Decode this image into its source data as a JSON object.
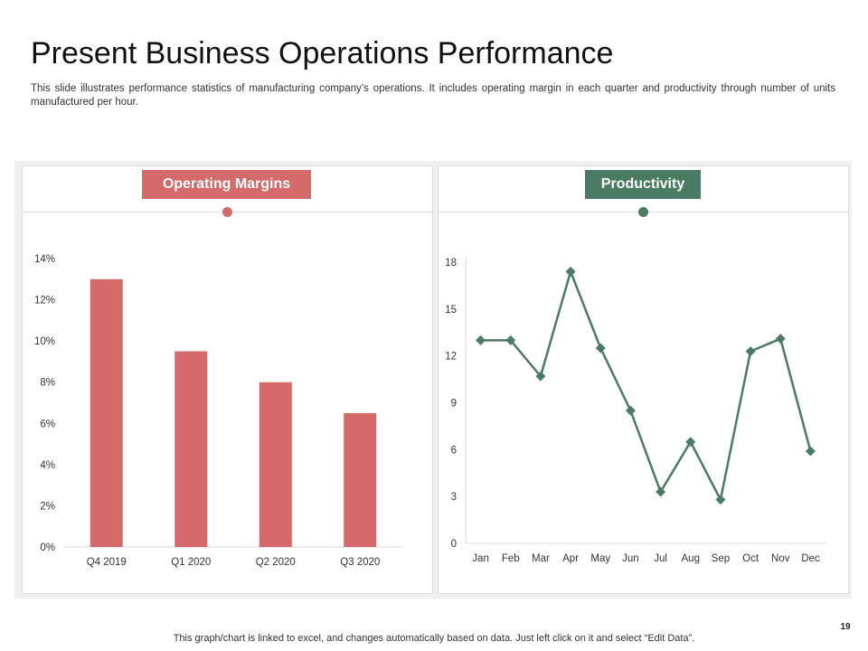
{
  "slide": {
    "title": "Present Business Operations Performance",
    "subtitle": "This slide illustrates performance statistics of manufacturing company’s operations. It includes operating margin in each quarter and productivity through number of units manufactured per hour.",
    "footer": "This graph/chart is linked to excel, and changes automatically based on data. Just left click on it and select “Edit Data”.",
    "page_number": "19"
  },
  "colors": {
    "margin_accent": "#d46a6a",
    "productivity_accent": "#4a7c63"
  },
  "chart_data": [
    {
      "type": "bar",
      "label": "Operating Margins",
      "categories": [
        "Q4 2019",
        "Q1 2020",
        "Q2 2020",
        "Q3 2020"
      ],
      "values": [
        13,
        9.5,
        8,
        6.5
      ],
      "ylim": [
        0,
        14
      ],
      "yticks": [
        0,
        2,
        4,
        6,
        8,
        10,
        12,
        14
      ],
      "ytick_labels": [
        "0%",
        "2%",
        "4%",
        "6%",
        "8%",
        "10%",
        "12%",
        "14%"
      ],
      "title": "",
      "xlabel": "",
      "ylabel": "",
      "grid": false
    },
    {
      "type": "line",
      "label": "Productivity",
      "categories": [
        "Jan",
        "Feb",
        "Mar",
        "Apr",
        "May",
        "Jun",
        "Jul",
        "Aug",
        "Sep",
        "Oct",
        "Nov",
        "Dec"
      ],
      "values": [
        13,
        13,
        10.7,
        17.4,
        12.5,
        8.5,
        3.3,
        6.5,
        2.8,
        12.3,
        13.1,
        5.9
      ],
      "ylim": [
        0,
        18
      ],
      "yticks": [
        0,
        3,
        6,
        9,
        12,
        15,
        18
      ],
      "ytick_labels": [
        "0",
        "3",
        "6",
        "9",
        "12",
        "15",
        "18"
      ],
      "marker": "diamond",
      "title": "",
      "xlabel": "",
      "ylabel": "",
      "grid": false
    }
  ]
}
